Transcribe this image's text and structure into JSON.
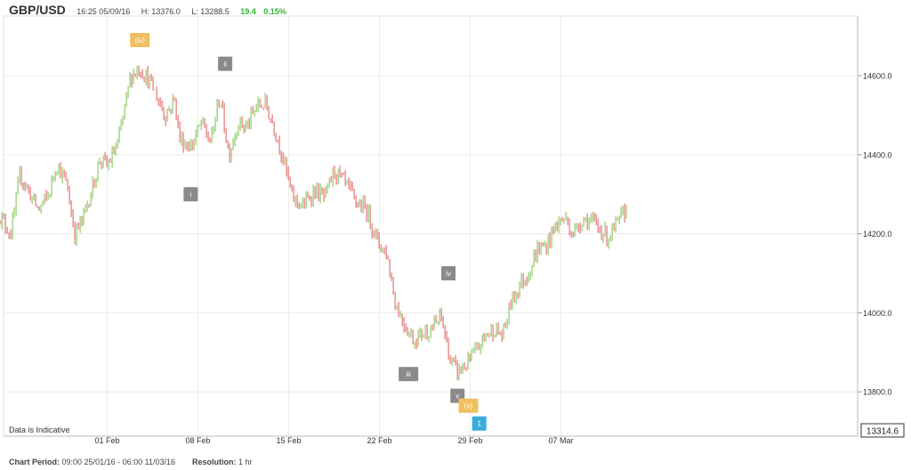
{
  "header": {
    "symbol": "GBP/USD",
    "datetime": "16:25 05/09/16",
    "high": "H: 13376.0",
    "low": "L: 13288.5",
    "change": "19.4",
    "change_pct": "0.15%"
  },
  "footer": {
    "period_label": "Chart Period:",
    "period_value": "09:00 25/01/16 - 06:00 11/03/16",
    "resolution_label": "Resolution:",
    "resolution_value": "1 hr"
  },
  "colors": {
    "up": "#7cbf4d",
    "down": "#e05a5a",
    "grid": "#ececec",
    "label_gray": "#8a8a8a",
    "label_orange": "#f0c060",
    "label_blue": "#3aacdc"
  },
  "chart_data": {
    "type": "candlestick",
    "note_text": "Data is Indicative",
    "last_price": "13314.6",
    "ylim": [
      13700,
      14750
    ],
    "y_ticks": [
      {
        "value": 13800,
        "label": "13800.0"
      },
      {
        "value": 14000,
        "label": "14000.0"
      },
      {
        "value": 14200,
        "label": "14200.0"
      },
      {
        "value": 14400,
        "label": "14400.0"
      },
      {
        "value": 14600,
        "label": "14600.0"
      }
    ],
    "x_ticks": [
      {
        "index": 6,
        "label": "01 Feb"
      },
      {
        "index": 11,
        "label": "08 Feb"
      },
      {
        "index": 16,
        "label": "15 Feb"
      },
      {
        "index": 21,
        "label": "22 Feb"
      },
      {
        "index": 26,
        "label": "29 Feb"
      },
      {
        "index": 31,
        "label": "07 Mar"
      }
    ],
    "path_points": [
      [
        0,
        14250
      ],
      [
        0.7,
        14200
      ],
      [
        1.2,
        14350
      ],
      [
        2.2,
        14260
      ],
      [
        2.8,
        14300
      ],
      [
        3.2,
        14380
      ],
      [
        3.8,
        14320
      ],
      [
        4.2,
        14200
      ],
      [
        4.6,
        14230
      ],
      [
        5.2,
        14320
      ],
      [
        5.6,
        14390
      ],
      [
        6.0,
        14370
      ],
      [
        6.6,
        14430
      ],
      [
        7.3,
        14600
      ],
      [
        7.8,
        14620
      ],
      [
        8.4,
        14580
      ],
      [
        9.2,
        14500
      ],
      [
        9.7,
        14540
      ],
      [
        10.0,
        14440
      ],
      [
        10.6,
        14420
      ],
      [
        11.2,
        14480
      ],
      [
        11.7,
        14430
      ],
      [
        12.2,
        14550
      ],
      [
        12.7,
        14400
      ],
      [
        13.2,
        14480
      ],
      [
        13.7,
        14470
      ],
      [
        14.2,
        14520
      ],
      [
        14.7,
        14530
      ],
      [
        15.2,
        14470
      ],
      [
        15.7,
        14390
      ],
      [
        16.2,
        14290
      ],
      [
        16.8,
        14270
      ],
      [
        17.4,
        14310
      ],
      [
        18.0,
        14290
      ],
      [
        18.5,
        14360
      ],
      [
        19.2,
        14320
      ],
      [
        19.7,
        14280
      ],
      [
        20.3,
        14260
      ],
      [
        20.9,
        14180
      ],
      [
        21.4,
        14150
      ],
      [
        21.9,
        14020
      ],
      [
        22.4,
        13970
      ],
      [
        22.9,
        13930
      ],
      [
        23.4,
        13950
      ],
      [
        23.9,
        13960
      ],
      [
        24.4,
        13990
      ],
      [
        24.9,
        13880
      ],
      [
        25.3,
        13850
      ],
      [
        25.8,
        13870
      ],
      [
        26.3,
        13900
      ],
      [
        26.8,
        13940
      ],
      [
        27.3,
        13960
      ],
      [
        27.8,
        13940
      ],
      [
        28.2,
        14020
      ],
      [
        28.7,
        14070
      ],
      [
        29.2,
        14100
      ],
      [
        29.7,
        14160
      ],
      [
        30.2,
        14170
      ],
      [
        30.7,
        14220
      ],
      [
        31.2,
        14240
      ],
      [
        31.7,
        14200
      ],
      [
        32.2,
        14240
      ],
      [
        32.7,
        14230
      ],
      [
        33.2,
        14210
      ],
      [
        33.6,
        14190
      ],
      [
        34.2,
        14230
      ],
      [
        34.7,
        14270
      ]
    ],
    "annotations": [
      {
        "label": "(iv)",
        "index": 7.8,
        "price": 14690,
        "style": "orange"
      },
      {
        "label": "ii",
        "index": 12.5,
        "price": 14630,
        "style": "gray"
      },
      {
        "label": "i",
        "index": 10.6,
        "price": 14300,
        "style": "gray"
      },
      {
        "label": "iii",
        "index": 22.6,
        "price": 13845,
        "style": "gray"
      },
      {
        "label": "iv",
        "index": 24.8,
        "price": 14100,
        "style": "gray"
      },
      {
        "label": "v",
        "index": 25.3,
        "price": 13790,
        "style": "gray"
      },
      {
        "label": "(v)",
        "index": 25.9,
        "price": 13765,
        "style": "orange"
      },
      {
        "label": "1",
        "index": 26.5,
        "price": 13720,
        "style": "blue"
      }
    ]
  }
}
